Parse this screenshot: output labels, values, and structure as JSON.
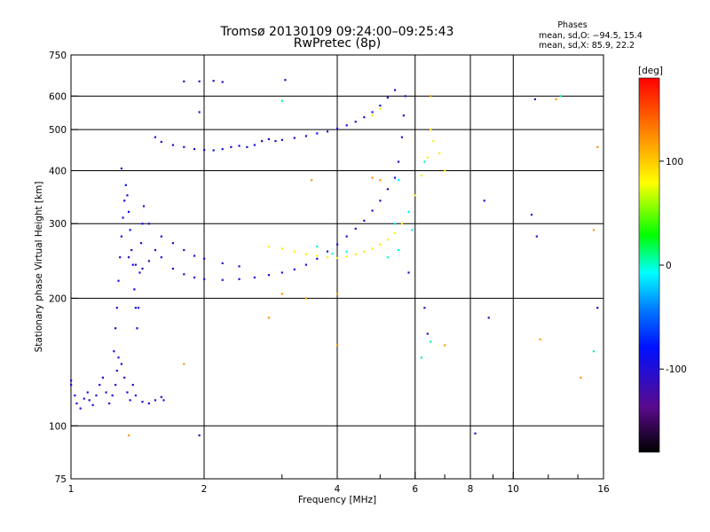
{
  "chart_data": {
    "type": "scatter",
    "title": "Tromsø 20130109 09:24:00–09:25:43",
    "subtitle": "RwPretec (8p)",
    "xlabel": "Frequency [MHz]",
    "ylabel": "Stationary phase Virtual Height [km]",
    "x_scale": "log",
    "y_scale": "log",
    "xlim": [
      1,
      16
    ],
    "ylim": [
      75,
      750
    ],
    "x_ticks": [
      {
        "value": 1,
        "label": "1"
      },
      {
        "value": 2,
        "label": "2"
      },
      {
        "value": 4,
        "label": "4"
      },
      {
        "value": 6,
        "label": "6"
      },
      {
        "value": 8,
        "label": "8"
      },
      {
        "value": 10,
        "label": "10"
      },
      {
        "value": 16,
        "label": "16"
      }
    ],
    "x_gridlines": [
      2,
      4,
      6,
      8,
      10
    ],
    "x_minor_ticks": [
      3,
      5,
      7,
      9,
      12,
      14
    ],
    "y_ticks": [
      {
        "value": 75,
        "label": "75"
      },
      {
        "value": 100,
        "label": "100"
      },
      {
        "value": 200,
        "label": "200"
      },
      {
        "value": 300,
        "label": "300"
      },
      {
        "value": 400,
        "label": "400"
      },
      {
        "value": 500,
        "label": "500"
      },
      {
        "value": 600,
        "label": "600"
      },
      {
        "value": 750,
        "label": "750"
      }
    ],
    "y_gridlines": [
      100,
      200,
      300,
      400,
      500,
      600
    ],
    "stats": {
      "heading": "Phases",
      "o_line": "mean, sd,O: −94.5, 15.4",
      "x_line": "mean, sd,X:  85.9, 22.2"
    },
    "colorbar": {
      "label": "[deg]",
      "range": [
        -180,
        180
      ],
      "ticks": [
        {
          "value": 100,
          "label": "100"
        },
        {
          "value": 0,
          "label": "0"
        },
        {
          "value": -100,
          "label": "-100"
        }
      ]
    },
    "grid": true,
    "traces": [
      {
        "phase": -95,
        "points": [
          [
            1.0,
            128
          ],
          [
            1.0,
            125
          ],
          [
            1.02,
            118
          ],
          [
            1.03,
            113
          ],
          [
            1.05,
            110
          ],
          [
            1.07,
            116
          ],
          [
            1.09,
            120
          ],
          [
            1.1,
            115
          ],
          [
            1.12,
            112
          ],
          [
            1.14,
            118
          ],
          [
            1.16,
            125
          ],
          [
            1.18,
            130
          ],
          [
            1.2,
            120
          ],
          [
            1.22,
            113
          ],
          [
            1.24,
            118
          ],
          [
            1.26,
            125
          ],
          [
            1.27,
            135
          ],
          [
            1.28,
            145
          ],
          [
            1.3,
            140
          ],
          [
            1.32,
            130
          ],
          [
            1.34,
            120
          ],
          [
            1.36,
            115
          ],
          [
            1.38,
            125
          ],
          [
            1.4,
            118
          ],
          [
            1.45,
            114
          ],
          [
            1.5,
            113
          ],
          [
            1.55,
            115
          ],
          [
            1.6,
            117
          ],
          [
            1.62,
            115
          ]
        ]
      },
      {
        "phase": -90,
        "points": [
          [
            1.25,
            150
          ],
          [
            1.26,
            170
          ],
          [
            1.27,
            190
          ],
          [
            1.28,
            220
          ],
          [
            1.29,
            250
          ],
          [
            1.3,
            280
          ],
          [
            1.31,
            310
          ],
          [
            1.32,
            340
          ],
          [
            1.33,
            370
          ],
          [
            1.34,
            350
          ],
          [
            1.35,
            320
          ],
          [
            1.36,
            290
          ],
          [
            1.37,
            260
          ],
          [
            1.38,
            240
          ],
          [
            1.39,
            210
          ],
          [
            1.4,
            190
          ],
          [
            1.41,
            170
          ],
          [
            1.42,
            190
          ],
          [
            1.43,
            230
          ],
          [
            1.44,
            270
          ],
          [
            1.45,
            300
          ],
          [
            1.46,
            330
          ]
        ]
      },
      {
        "phase": -100,
        "points": [
          [
            1.35,
            250
          ],
          [
            1.4,
            240
          ],
          [
            1.45,
            235
          ],
          [
            1.5,
            245
          ],
          [
            1.55,
            260
          ],
          [
            1.6,
            250
          ],
          [
            1.7,
            235
          ],
          [
            1.8,
            228
          ],
          [
            1.9,
            224
          ],
          [
            2.0,
            222
          ],
          [
            2.2,
            221
          ],
          [
            2.4,
            222
          ],
          [
            2.6,
            224
          ],
          [
            2.8,
            227
          ],
          [
            3.0,
            230
          ],
          [
            3.2,
            234
          ],
          [
            3.4,
            240
          ],
          [
            3.6,
            248
          ],
          [
            3.8,
            258
          ],
          [
            4.0,
            268
          ],
          [
            4.2,
            280
          ],
          [
            4.4,
            292
          ],
          [
            4.6,
            305
          ],
          [
            4.8,
            322
          ],
          [
            5.0,
            340
          ],
          [
            5.2,
            362
          ],
          [
            5.4,
            385
          ],
          [
            5.5,
            420
          ],
          [
            5.6,
            480
          ],
          [
            5.65,
            540
          ],
          [
            5.7,
            600
          ]
        ]
      },
      {
        "phase": -100,
        "points": [
          [
            1.5,
            300
          ],
          [
            1.6,
            280
          ],
          [
            1.7,
            270
          ],
          [
            1.8,
            260
          ],
          [
            1.9,
            252
          ],
          [
            2.0,
            248
          ],
          [
            2.2,
            242
          ],
          [
            2.4,
            238
          ]
        ]
      },
      {
        "phase": -95,
        "points": [
          [
            1.55,
            480
          ],
          [
            1.6,
            468
          ],
          [
            1.7,
            460
          ],
          [
            1.8,
            455
          ],
          [
            1.9,
            450
          ],
          [
            2.0,
            448
          ],
          [
            2.1,
            447
          ],
          [
            2.2,
            450
          ],
          [
            2.3,
            455
          ],
          [
            2.4,
            458
          ],
          [
            2.5,
            455
          ],
          [
            2.6,
            460
          ],
          [
            2.7,
            470
          ],
          [
            2.8,
            475
          ],
          [
            2.9,
            470
          ],
          [
            3.0,
            473
          ],
          [
            3.2,
            478
          ],
          [
            3.4,
            483
          ],
          [
            3.6,
            490
          ],
          [
            3.8,
            495
          ],
          [
            4.0,
            503
          ],
          [
            4.2,
            512
          ],
          [
            4.4,
            522
          ],
          [
            4.6,
            535
          ],
          [
            4.8,
            550
          ],
          [
            5.0,
            570
          ],
          [
            5.2,
            595
          ],
          [
            5.4,
            620
          ]
        ]
      },
      {
        "phase": 85,
        "points": [
          [
            2.8,
            265
          ],
          [
            3.0,
            262
          ],
          [
            3.2,
            258
          ],
          [
            3.4,
            254
          ],
          [
            3.6,
            252
          ],
          [
            3.8,
            250
          ],
          [
            4.0,
            249
          ],
          [
            4.2,
            251
          ],
          [
            4.4,
            254
          ],
          [
            4.6,
            258
          ],
          [
            4.8,
            262
          ],
          [
            5.0,
            268
          ],
          [
            5.2,
            275
          ],
          [
            5.4,
            285
          ],
          [
            5.6,
            300
          ],
          [
            5.8,
            320
          ],
          [
            6.0,
            350
          ],
          [
            6.2,
            390
          ],
          [
            6.4,
            430
          ],
          [
            6.6,
            470
          ],
          [
            6.8,
            440
          ],
          [
            7.0,
            400
          ],
          [
            6.5,
            500
          ],
          [
            5.0,
            560
          ],
          [
            4.8,
            540
          ]
        ]
      },
      {
        "phase": 0,
        "points": [
          [
            3.6,
            265
          ],
          [
            3.9,
            255
          ],
          [
            4.2,
            258
          ],
          [
            5.2,
            250
          ],
          [
            5.5,
            260
          ],
          [
            5.9,
            290
          ],
          [
            6.3,
            420
          ]
        ]
      },
      {
        "phase": -10,
        "points": [
          [
            5.5,
            380
          ],
          [
            5.8,
            320
          ],
          [
            5.4,
            300
          ]
        ]
      },
      {
        "phase": -105,
        "points": [
          [
            1.3,
            405
          ],
          [
            1.95,
            650
          ],
          [
            2.1,
            652
          ],
          [
            2.2,
            648
          ],
          [
            1.95,
            550
          ],
          [
            1.8,
            650
          ],
          [
            11.2,
            590
          ],
          [
            15.5,
            190
          ],
          [
            8.6,
            340
          ],
          [
            11.0,
            315
          ],
          [
            8.8,
            180
          ],
          [
            6.3,
            190
          ],
          [
            6.4,
            165
          ],
          [
            5.8,
            230
          ],
          [
            8.2,
            96
          ],
          [
            1.95,
            95
          ],
          [
            11.3,
            280
          ],
          [
            3.05,
            655
          ]
        ]
      },
      {
        "phase": 120,
        "points": [
          [
            1.35,
            95
          ],
          [
            1.8,
            140
          ],
          [
            3.0,
            205
          ],
          [
            3.5,
            380
          ],
          [
            4.0,
            205
          ],
          [
            4.0,
            155
          ],
          [
            4.8,
            385
          ],
          [
            6.5,
            600
          ],
          [
            11.5,
            160
          ],
          [
            12.5,
            590
          ],
          [
            14.2,
            130
          ],
          [
            15.2,
            290
          ],
          [
            15.5,
            455
          ],
          [
            5.0,
            380
          ],
          [
            7.0,
            155
          ],
          [
            3.4,
            200
          ],
          [
            2.8,
            180
          ]
        ]
      },
      {
        "phase": 10,
        "points": [
          [
            6.2,
            145
          ],
          [
            15.2,
            150
          ],
          [
            6.5,
            158
          ],
          [
            3.0,
            585
          ],
          [
            12.8,
            600
          ]
        ]
      }
    ]
  }
}
